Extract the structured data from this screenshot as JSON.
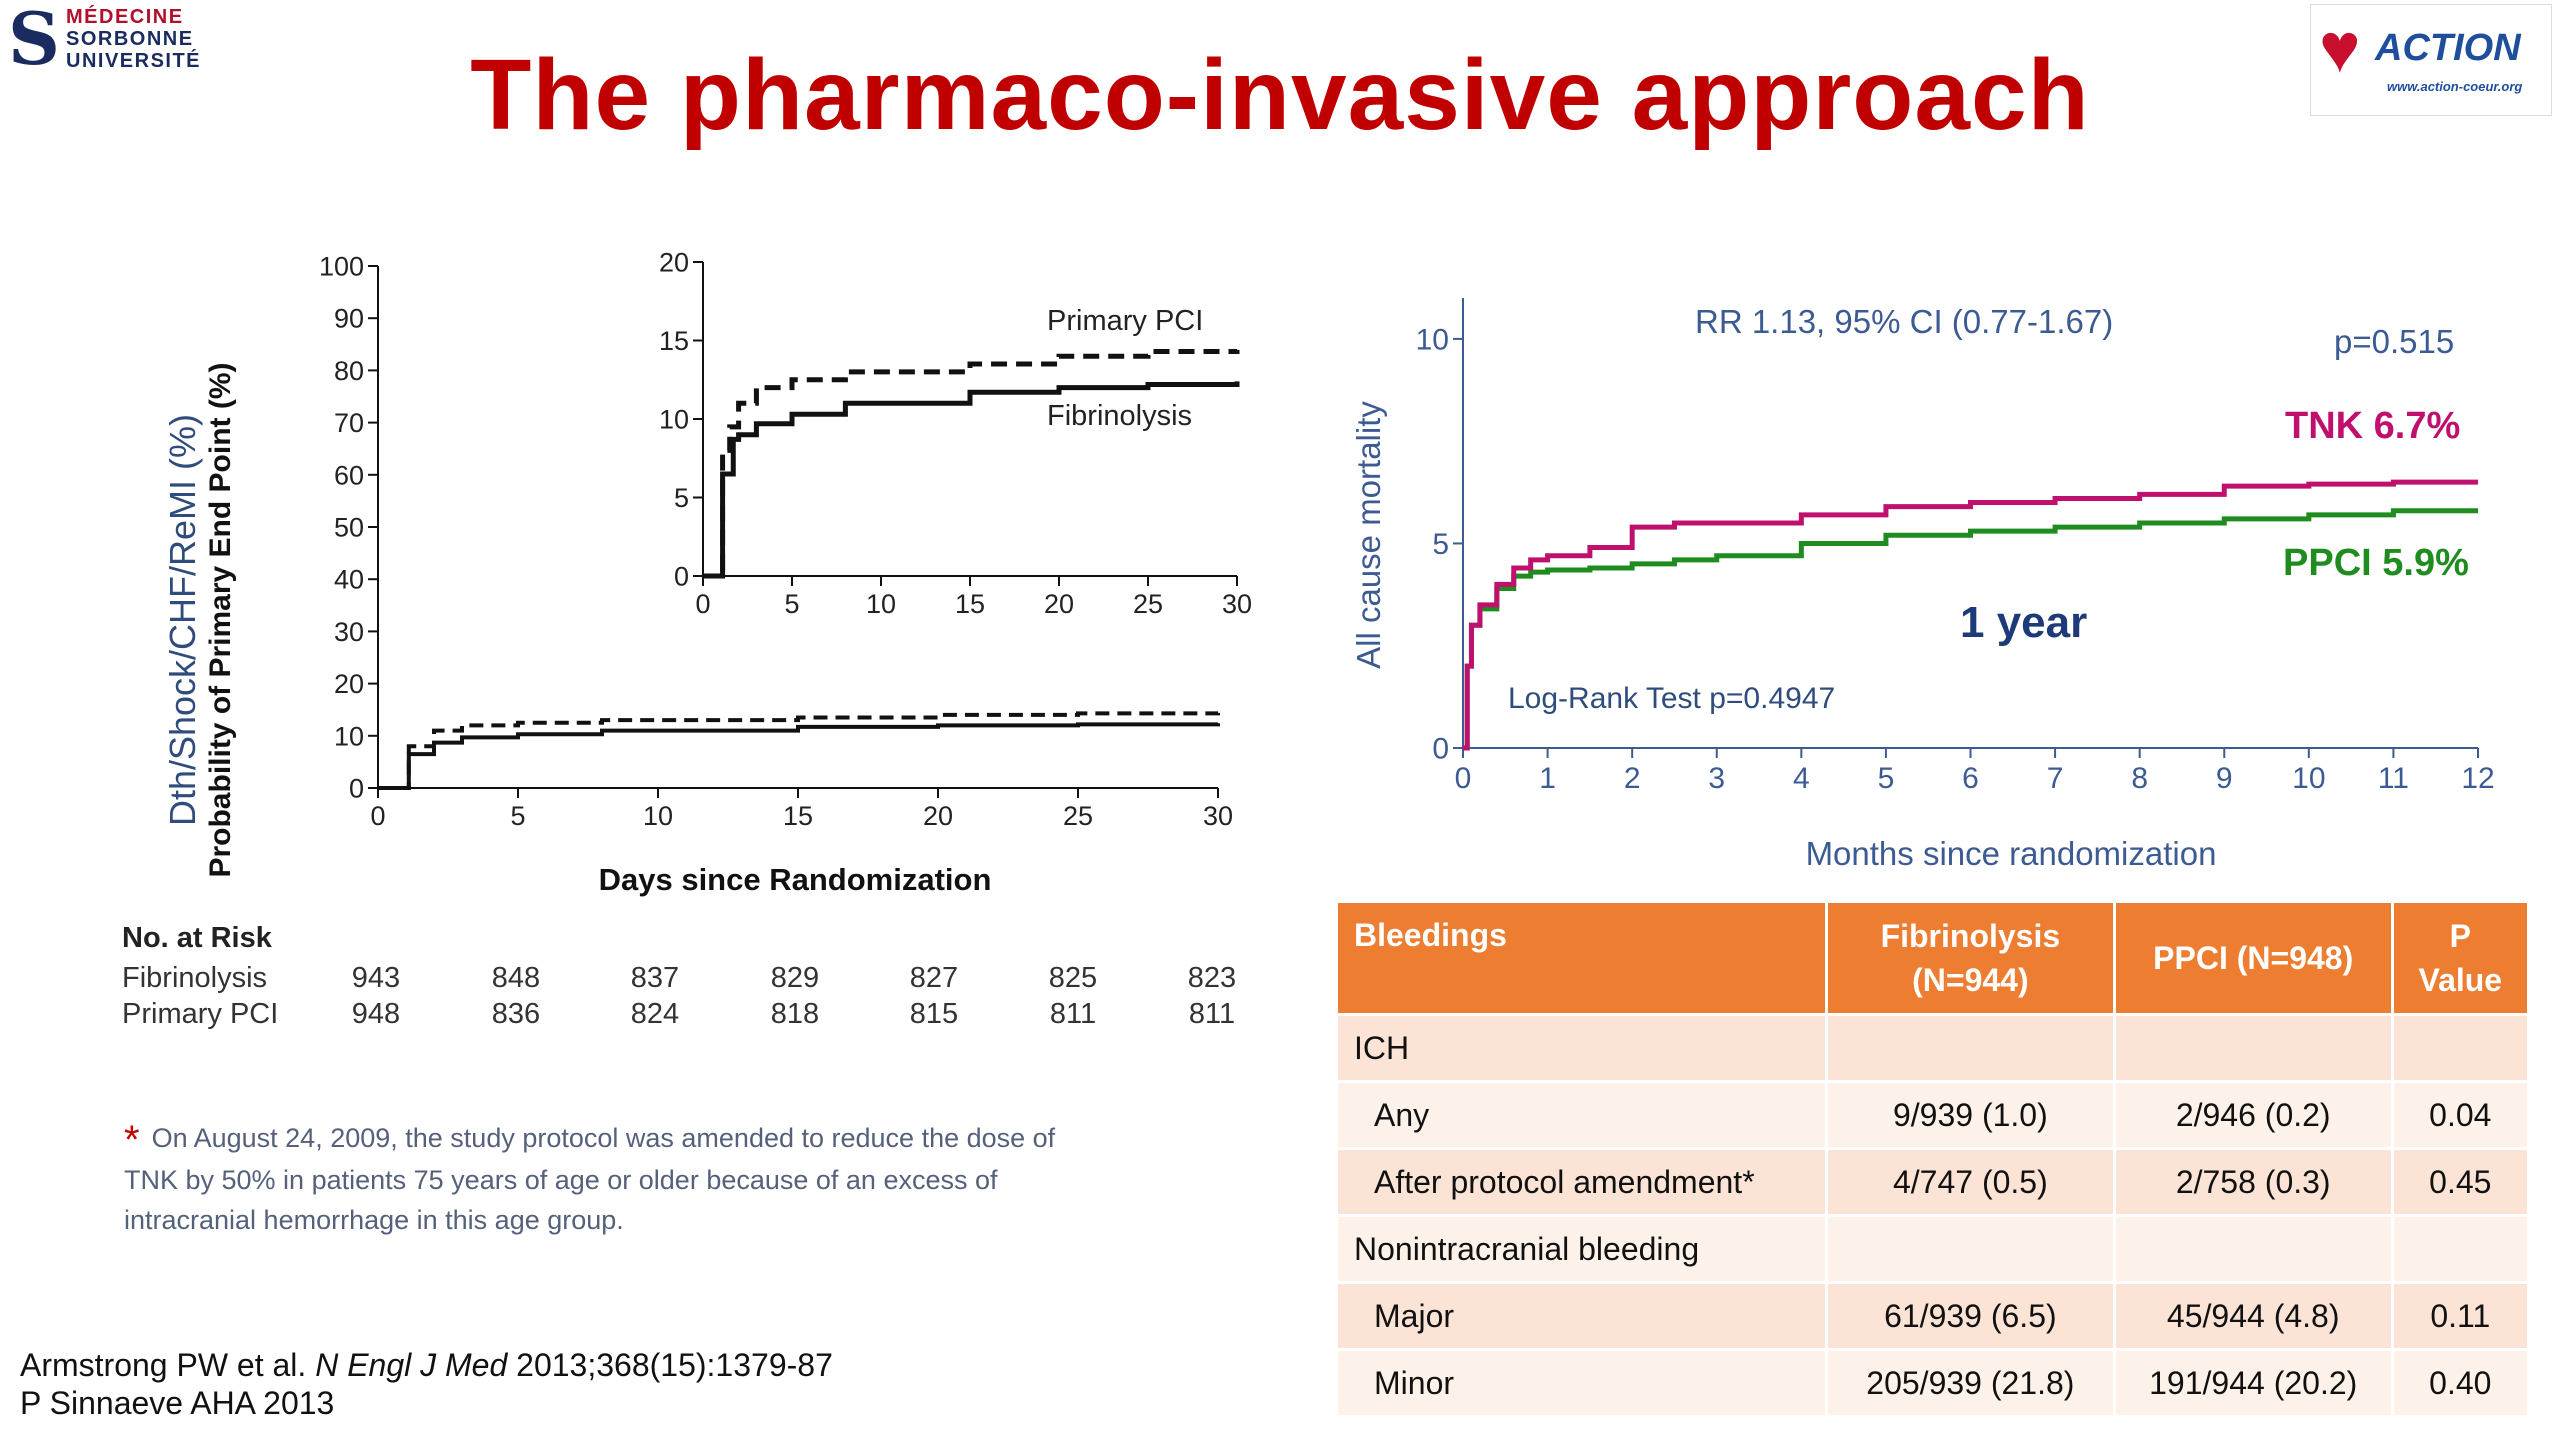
{
  "header": {
    "title": "The pharmaco-invasive approach",
    "logo_left_lines": [
      "MÉDECINE",
      "SORBONNE",
      "UNIVERSITÉ"
    ],
    "logo_right": {
      "word": "ACTION",
      "url": "www.action-coeur.org"
    }
  },
  "chart_data": [
    {
      "type": "line",
      "step": true,
      "ylabel_overlay": "Dth/Shock/CHF/ReMI (%)",
      "ylabel_under": "Probability of Primary End Point (%)",
      "xlabel": "Days since Randomization",
      "xlim": [
        0,
        30
      ],
      "ylim": [
        0,
        100
      ],
      "xticks": [
        0,
        5,
        10,
        15,
        20,
        25,
        30
      ],
      "yticks": [
        0,
        10,
        20,
        30,
        40,
        50,
        60,
        70,
        80,
        90,
        100
      ],
      "series": [
        {
          "name": "Primary PCI",
          "style": "dashed",
          "x": [
            0,
            1,
            1.1,
            2,
            3,
            5,
            8,
            15,
            20,
            25,
            30
          ],
          "y": [
            0,
            0,
            8,
            11,
            12,
            12.5,
            13,
            13.5,
            14,
            14.3,
            14.4
          ]
        },
        {
          "name": "Fibrinolysis",
          "style": "solid",
          "x": [
            0,
            1,
            1.1,
            2,
            3,
            5,
            8,
            15,
            20,
            25,
            30
          ],
          "y": [
            0,
            0,
            6.5,
            8.7,
            9.7,
            10.3,
            11,
            11.7,
            12,
            12.2,
            12.4
          ]
        }
      ],
      "inset": {
        "xlim": [
          0,
          30
        ],
        "ylim": [
          0,
          20
        ],
        "xticks": [
          0,
          5,
          10,
          15,
          20,
          25,
          30
        ],
        "yticks": [
          0,
          5,
          10,
          15,
          20
        ],
        "series": [
          {
            "name": "Primary PCI",
            "style": "dashed",
            "x": [
              0,
              1,
              1.1,
              1.5,
              2,
              3,
              5,
              8,
              15,
              20,
              25,
              30
            ],
            "y": [
              0,
              0,
              8,
              9.5,
              11,
              12,
              12.5,
              13,
              13.5,
              14,
              14.3,
              14.4
            ]
          },
          {
            "name": "Fibrinolysis",
            "style": "solid",
            "x": [
              0,
              1,
              1.1,
              1.7,
              2,
              3,
              5,
              8,
              15,
              20,
              25,
              30
            ],
            "y": [
              0,
              0,
              6.5,
              8.7,
              9,
              9.7,
              10.3,
              11,
              11.7,
              12,
              12.2,
              12.4
            ]
          }
        ]
      },
      "number_at_risk": {
        "header": "No. at Risk",
        "rows": [
          {
            "label": "Fibrinolysis",
            "values": [
              "943",
              "848",
              "837",
              "829",
              "827",
              "825",
              "823"
            ]
          },
          {
            "label": "Primary PCI",
            "values": [
              "948",
              "836",
              "824",
              "818",
              "815",
              "811",
              "811"
            ]
          }
        ]
      }
    },
    {
      "type": "line",
      "step": true,
      "ylabel": "All cause mortality",
      "xlabel": "Months  since randomization",
      "xlim": [
        0,
        12
      ],
      "ylim": [
        0,
        11
      ],
      "xticks": [
        0,
        1,
        2,
        3,
        4,
        5,
        6,
        7,
        8,
        9,
        10,
        11,
        12
      ],
      "yticks": [
        0,
        5,
        10
      ],
      "annotations": {
        "rr": "RR 1.13, 95% CI (0.77-1.67)",
        "p": "p=0.515",
        "logrank": "Log-Rank Test p=0.4947",
        "period": "1 year"
      },
      "series": [
        {
          "name": "TNK 6.7%",
          "color": "#c0106e",
          "x": [
            0,
            0.05,
            0.1,
            0.2,
            0.4,
            0.6,
            0.8,
            1,
            1.5,
            2,
            2.5,
            3,
            4,
            5,
            6,
            7,
            8,
            9,
            10,
            11,
            12
          ],
          "y": [
            0,
            2,
            3,
            3.5,
            4,
            4.4,
            4.6,
            4.7,
            4.9,
            5.4,
            5.5,
            5.5,
            5.7,
            5.9,
            6.0,
            6.1,
            6.2,
            6.4,
            6.45,
            6.5,
            6.5
          ]
        },
        {
          "name": "PPCI 5.9%",
          "color": "#1f8c1f",
          "x": [
            0,
            0.05,
            0.1,
            0.2,
            0.4,
            0.6,
            0.8,
            1,
            1.5,
            2,
            2.5,
            3,
            4,
            5,
            6,
            7,
            8,
            9,
            10,
            11,
            12
          ],
          "y": [
            0,
            2,
            3,
            3.4,
            3.9,
            4.2,
            4.3,
            4.35,
            4.4,
            4.5,
            4.6,
            4.7,
            5.0,
            5.2,
            5.3,
            5.4,
            5.5,
            5.6,
            5.7,
            5.8,
            5.8
          ]
        }
      ]
    }
  ],
  "footnote": {
    "star": "*",
    "text": "On August 24, 2009, the study protocol  was amended to reduce the dose of TNK by 50% in patients 75 years of age or older because of an excess of intracranial hemorrhage in this age group."
  },
  "bleed_table": {
    "headers": [
      "Bleedings",
      "Fibrinolysis (N=944)",
      "PPCI (N=948)",
      "P Value"
    ],
    "rows": [
      {
        "cells": [
          "ICH",
          "",
          "",
          ""
        ],
        "sub": false
      },
      {
        "cells": [
          "Any",
          "9/939 (1.0)",
          "2/946 (0.2)",
          "0.04"
        ],
        "sub": true
      },
      {
        "cells": [
          "After protocol amendment*",
          "4/747 (0.5)",
          "2/758 (0.3)",
          "0.45"
        ],
        "sub": true
      },
      {
        "cells": [
          "Nonintracranial bleeding",
          "",
          "",
          ""
        ],
        "sub": false
      },
      {
        "cells": [
          "Major",
          "61/939 (6.5)",
          "45/944 (4.8)",
          "0.11"
        ],
        "sub": true
      },
      {
        "cells": [
          "Minor",
          "205/939 (21.8)",
          "191/944 (20.2)",
          "0.40"
        ],
        "sub": true
      }
    ]
  },
  "citation": {
    "authors": "Armstrong PW et al. ",
    "journal": "N Engl J Med",
    "ref": " 2013;368(15):1379-87",
    "line2": "P Sinnaeve AHA 2013"
  }
}
